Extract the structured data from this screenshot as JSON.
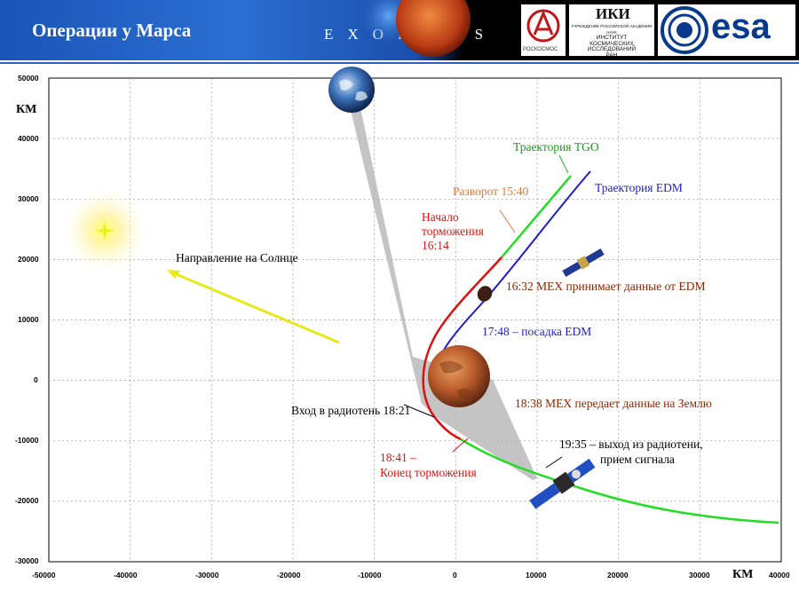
{
  "header": {
    "title": "Операции у Марса",
    "mission": "EXOMARS",
    "logo_roscosmos": "РОСКОСМОС",
    "logo_iki_big": "ИКИ",
    "logo_iki_lines": [
      "УЧРЕЖДЕНИЕ РОССИЙСКОЙ АКАДЕМИИ НАУК",
      "ИНСТИТУТ",
      "КОСМИЧЕСКИХ",
      "ИССЛЕДОВАНИЙ",
      "РАН"
    ],
    "logo_esa": "esa"
  },
  "axes": {
    "x_label": "КМ",
    "y_label": "КМ",
    "x_ticks": [
      "-50000",
      "-40000",
      "-30000",
      "-20000",
      "-10000",
      "0",
      "10000",
      "20000",
      "30000",
      "40000"
    ],
    "y_ticks": [
      "50000",
      "40000",
      "30000",
      "20000",
      "10000",
      "0",
      "-10000",
      "-20000",
      "-30000"
    ]
  },
  "annotations": {
    "tgo": "Траектория TGO",
    "edm": "Траектория EDM",
    "turn": "Разворот 15:40",
    "brake_start_1": "Начало",
    "brake_start_2": "торможения",
    "brake_start_3": "16:14",
    "mex_receive": "16:32 МЕХ принимает данные от EDM",
    "landing": "17:48 – посадка  EDM",
    "mex_send": "18:38 МЕХ передает данные  на Землю",
    "occultation": "Вход в радиотень 18:21",
    "brake_end_1": "18:41 –",
    "brake_end_2": "Конец торможения",
    "exit_1": "19:35 – выход из радиотени,",
    "exit_2": "прием сигнала",
    "sun_dir": "Направление  на Солнце"
  },
  "colors": {
    "tgo": "#22dd22",
    "edm": "#1c1ccc",
    "brake": "#dd1111",
    "turn": "#e07a3a",
    "mex_text": "#8b2500",
    "sun_arrow": "#e8e81a"
  }
}
